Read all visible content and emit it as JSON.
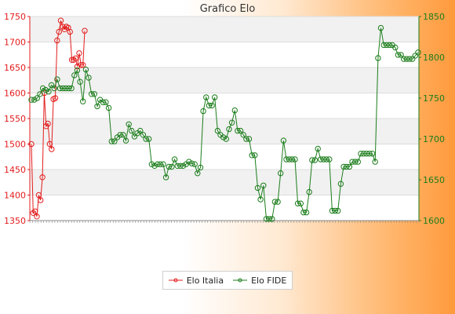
{
  "chart_data": {
    "type": "line",
    "title": "Grafico Elo",
    "y_left": {
      "min": 1350,
      "max": 1750,
      "ticks": [
        1350,
        1400,
        1450,
        1500,
        1550,
        1600,
        1650,
        1700,
        1750
      ],
      "color": "#e31c1c"
    },
    "y_right": {
      "min": 1600,
      "max": 1850,
      "ticks": [
        1600,
        1650,
        1700,
        1750,
        1800,
        1850
      ],
      "color": "#1b7d1b"
    },
    "grid": true,
    "legend_position": "bottom",
    "series": [
      {
        "name": "Elo Italia",
        "axis": "left",
        "color": "#e31c1c",
        "values": [
          1500,
          1365,
          1368,
          1358,
          1400,
          1390,
          1435,
          1600,
          1535,
          1540,
          1500,
          1490,
          1588,
          1590,
          1703,
          1720,
          1742,
          1730,
          1725,
          1730,
          1728,
          1720,
          1665,
          1665,
          1668,
          1652,
          1678,
          1655,
          1655,
          1722
        ]
      },
      {
        "name": "Elo FIDE",
        "axis": "right",
        "color": "#1b7d1b",
        "values": [
          1748,
          1748,
          1750,
          1755,
          1762,
          1760,
          1758,
          1766,
          1762,
          1773,
          1762,
          1762,
          1762,
          1762,
          1762,
          1778,
          1784,
          1770,
          1746,
          1785,
          1775,
          1755,
          1755,
          1740,
          1748,
          1745,
          1745,
          1738,
          1697,
          1697,
          1702,
          1705,
          1705,
          1698,
          1718,
          1710,
          1703,
          1707,
          1710,
          1705,
          1700,
          1700,
          1669,
          1667,
          1669,
          1669,
          1669,
          1653,
          1666,
          1666,
          1675,
          1667,
          1667,
          1667,
          1669,
          1672,
          1670,
          1669,
          1658,
          1665,
          1734,
          1751,
          1741,
          1741,
          1751,
          1710,
          1705,
          1702,
          1700,
          1712,
          1720,
          1735,
          1710,
          1710,
          1705,
          1700,
          1700,
          1680,
          1680,
          1640,
          1626,
          1643,
          1602,
          1602,
          1602,
          1623,
          1623,
          1658,
          1698,
          1675,
          1675,
          1675,
          1675,
          1621,
          1621,
          1610,
          1610,
          1635,
          1674,
          1674,
          1688,
          1675,
          1675,
          1675,
          1675,
          1612,
          1612,
          1612,
          1645,
          1666,
          1666,
          1666,
          1672,
          1672,
          1672,
          1682,
          1682,
          1682,
          1682,
          1682,
          1672,
          1799,
          1836,
          1815,
          1815,
          1815,
          1815,
          1812,
          1803,
          1803,
          1798,
          1798,
          1798,
          1798,
          1802,
          1806
        ]
      }
    ]
  }
}
